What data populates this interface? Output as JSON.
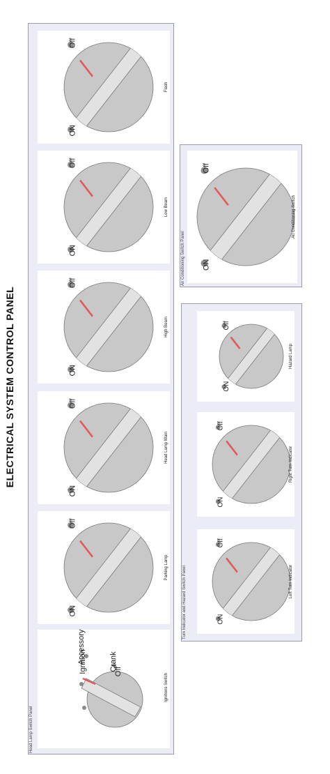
{
  "title": "ELECTRICAL SYSTEM CONTROL PANEL",
  "head_lamp_panel": {
    "title": "Head Lamp Switch Panel",
    "ignition": {
      "label": "Ignitions Switch",
      "positions": [
        "Off",
        "Accessory",
        "Ignition",
        "Crank"
      ]
    },
    "switches": [
      {
        "label": "Parking Lamp",
        "off": "Off",
        "on": "ON"
      },
      {
        "label": "Head Lamp Main",
        "off": "Off",
        "on": "ON"
      },
      {
        "label": "High Beam",
        "off": "Off",
        "on": "ON"
      },
      {
        "label": "Low Beam",
        "off": "Off",
        "on": "ON"
      },
      {
        "label": "Flash",
        "off": "Off",
        "on": "ON"
      }
    ]
  },
  "turn_panel": {
    "title": "Turn Indicator and Hazard Switch Panel",
    "switches": [
      {
        "label": "Left Turn Indicator",
        "off": "Off",
        "on": "ON"
      },
      {
        "label": "Right Turn Indicator",
        "off": "Off",
        "on": "ON"
      },
      {
        "label": "Hazard Lamp",
        "off": "Off",
        "on": "ON"
      }
    ]
  },
  "ac_panel": {
    "title": "Air Conditioning Switch Panel",
    "switch": {
      "label": "Air Conditioning Switch",
      "off": "Off",
      "on": "ON"
    }
  },
  "colors": {
    "panel_bg": "#ececf6",
    "knob": "#c8c8c8",
    "knob_stripe": "#e2e2e2",
    "indicator": "#e05a5a",
    "dot": "#8c8c8c"
  }
}
